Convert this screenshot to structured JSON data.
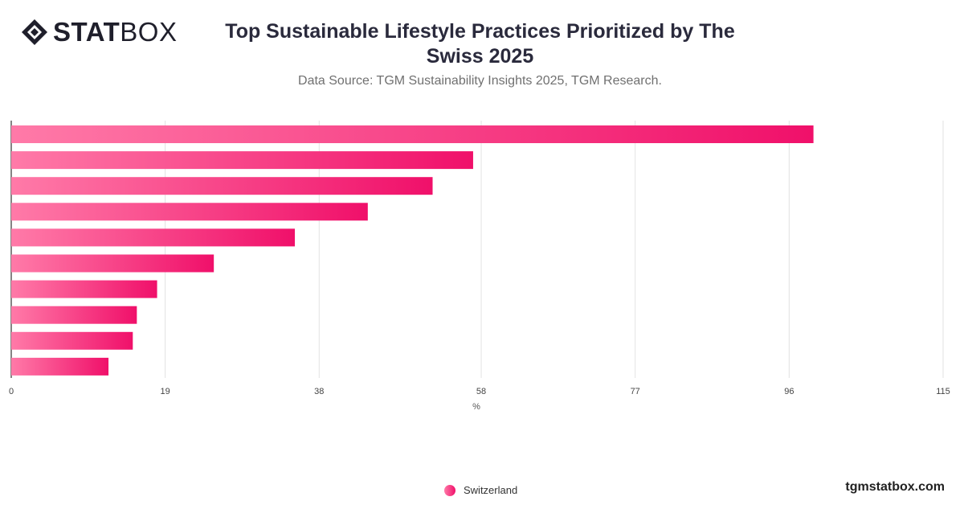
{
  "header": {
    "logo_bold": "STAT",
    "logo_light": "BOX",
    "title": "Top Sustainable Lifestyle Practices Prioritized by The Swiss 2025",
    "subtitle": "Data Source: TGM Sustainability Insights 2025, TGM Research."
  },
  "legend": {
    "label": "Switzerland",
    "color": "#f0106a"
  },
  "footer": {
    "site": "tgmstatbox.com"
  },
  "chart_data": {
    "type": "bar",
    "orientation": "horizontal",
    "categories": [
      "",
      "",
      "",
      "",
      "",
      "",
      "",
      "",
      "",
      ""
    ],
    "series": [
      {
        "name": "Switzerland",
        "values": [
          99,
          57,
          52,
          44,
          35,
          25,
          18,
          15.5,
          15,
          12
        ]
      }
    ],
    "xlabel": "%",
    "xlim": [
      0,
      115
    ],
    "xticks": [
      0,
      19,
      38,
      58,
      77,
      96,
      115
    ],
    "grid": true,
    "legend_position": "bottom",
    "colors": {
      "bar_start": "#ff7aa8",
      "bar_end": "#f0106a",
      "grid": "#e2e2e2",
      "axis": "#333333"
    }
  }
}
